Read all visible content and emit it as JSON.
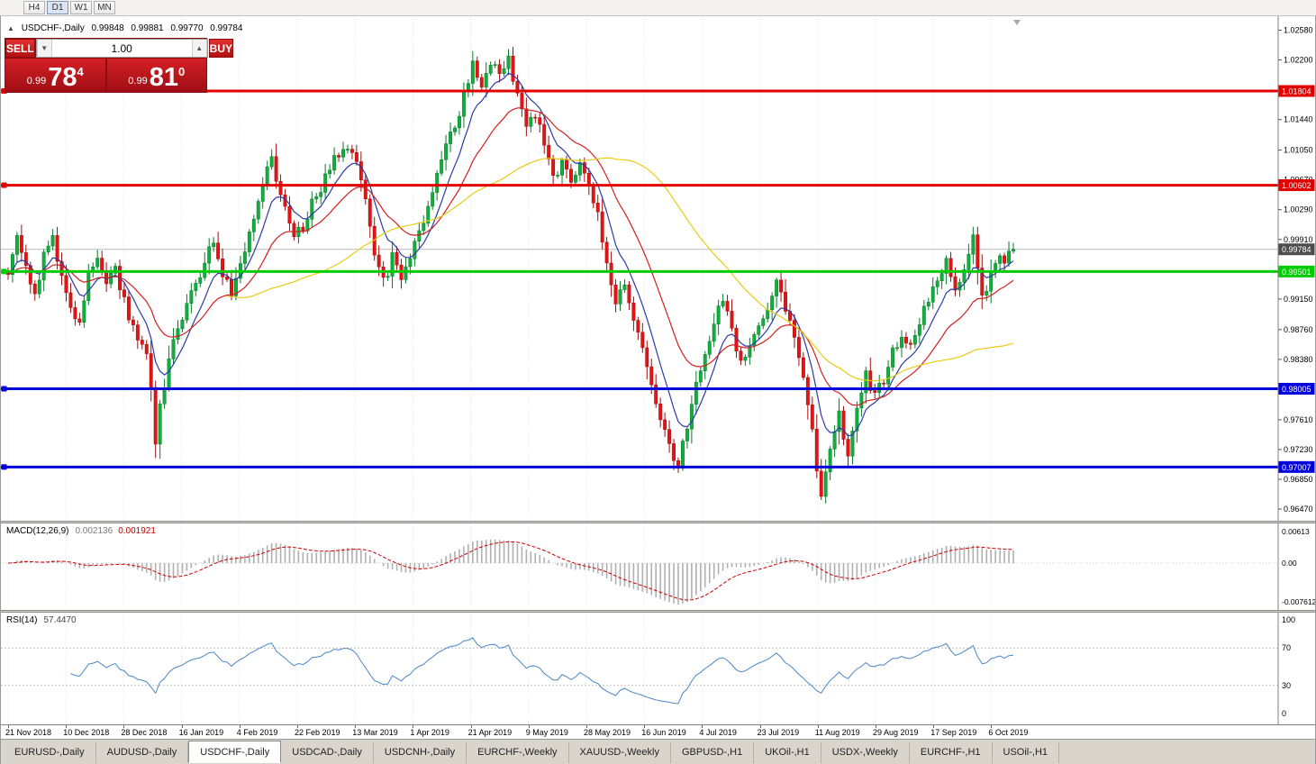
{
  "toolbar": {
    "timeframes": [
      {
        "label": "H4",
        "active": false
      },
      {
        "label": "D1",
        "active": true
      },
      {
        "label": "W1",
        "active": false
      },
      {
        "label": "MN",
        "active": false
      }
    ]
  },
  "chart_header": {
    "collapse_marker": "▲",
    "title": "USDCHF-,Daily",
    "ohlc": {
      "open": "0.99848",
      "high": "0.99881",
      "low": "0.99770",
      "close": "0.99784"
    }
  },
  "trade_panel": {
    "sell_label": "SELL",
    "buy_label": "BUY",
    "volume": "1.00",
    "volume_down_glyph": "▼",
    "volume_up_glyph": "▲",
    "sell_price": {
      "prefix": "0.99",
      "big": "78",
      "sup": "4"
    },
    "buy_price": {
      "prefix": "0.99",
      "big": "81",
      "sup": "0"
    }
  },
  "price_axis": {
    "ticks": [
      "1.02580",
      "1.02200",
      "1.01440",
      "1.01050",
      "1.00670",
      "1.00290",
      "0.99910",
      "0.99150",
      "0.98760",
      "0.98380",
      "0.97610",
      "0.97230",
      "0.96850",
      "0.96470"
    ],
    "current": {
      "label": "0.99784",
      "price": 0.99784,
      "color": "#4d4d4d"
    }
  },
  "chart_data": {
    "type": "candlestick",
    "symbol": "USDCHF-",
    "timeframe": "Daily",
    "bar_count": 226,
    "last_close": 0.99784,
    "price_range": [
      0.9647,
      1.0258
    ],
    "dates": [
      "21 Nov 2018",
      "10 Dec 2018",
      "28 Dec 2018",
      "16 Jan 2019",
      "4 Feb 2019",
      "22 Feb 2019",
      "13 Mar 2019",
      "1 Apr 2019",
      "21 Apr 2019",
      "9 May 2019",
      "28 May 2019",
      "16 Jun 2019",
      "4 Jul 2019",
      "23 Jul 2019",
      "11 Aug 2019",
      "29 Aug 2019",
      "17 Sep 2019",
      "6 Oct 2019"
    ],
    "close_anchors": [
      [
        0,
        0.9945
      ],
      [
        2,
        0.999
      ],
      [
        4,
        0.9952
      ],
      [
        6,
        0.9918
      ],
      [
        8,
        0.9975
      ],
      [
        10,
        0.9988
      ],
      [
        12,
        0.994
      ],
      [
        14,
        0.9902
      ],
      [
        16,
        0.9886
      ],
      [
        18,
        0.9952
      ],
      [
        20,
        0.9968
      ],
      [
        22,
        0.993
      ],
      [
        24,
        0.9958
      ],
      [
        26,
        0.9912
      ],
      [
        28,
        0.988
      ],
      [
        30,
        0.9852
      ],
      [
        31,
        0.984
      ],
      [
        32,
        0.98
      ],
      [
        33,
        0.9738
      ],
      [
        34,
        0.9775
      ],
      [
        36,
        0.9845
      ],
      [
        38,
        0.9885
      ],
      [
        40,
        0.9905
      ],
      [
        42,
        0.9935
      ],
      [
        44,
        0.9965
      ],
      [
        46,
        0.9985
      ],
      [
        48,
        0.995
      ],
      [
        50,
        0.9928
      ],
      [
        52,
        0.9965
      ],
      [
        54,
        0.9995
      ],
      [
        56,
        1.0032
      ],
      [
        58,
        1.008
      ],
      [
        59,
        1.0095
      ],
      [
        60,
        1.0062
      ],
      [
        62,
        1.0028
      ],
      [
        64,
        0.9992
      ],
      [
        66,
        1.0008
      ],
      [
        68,
        1.0035
      ],
      [
        70,
        1.0058
      ],
      [
        72,
        1.008
      ],
      [
        74,
        1.0102
      ],
      [
        76,
        1.0112
      ],
      [
        78,
        1.0085
      ],
      [
        80,
        1.0035
      ],
      [
        82,
        0.9975
      ],
      [
        84,
        0.9935
      ],
      [
        86,
        0.9968
      ],
      [
        88,
        0.9942
      ],
      [
        90,
        0.9975
      ],
      [
        92,
        1.0005
      ],
      [
        94,
        1.0035
      ],
      [
        96,
        1.0068
      ],
      [
        98,
        1.0105
      ],
      [
        100,
        1.0135
      ],
      [
        102,
        1.0175
      ],
      [
        104,
        1.021
      ],
      [
        106,
        1.0185
      ],
      [
        108,
        1.0222
      ],
      [
        110,
        1.0195
      ],
      [
        112,
        1.0226
      ],
      [
        114,
        1.0175
      ],
      [
        116,
        1.013
      ],
      [
        118,
        1.015
      ],
      [
        120,
        1.0108
      ],
      [
        122,
        1.007
      ],
      [
        124,
        1.0092
      ],
      [
        126,
        1.0062
      ],
      [
        128,
        1.0092
      ],
      [
        130,
        1.0066
      ],
      [
        132,
        1.0018
      ],
      [
        134,
        0.9968
      ],
      [
        136,
        0.9912
      ],
      [
        138,
        0.9932
      ],
      [
        140,
        0.9895
      ],
      [
        142,
        0.9858
      ],
      [
        144,
        0.9812
      ],
      [
        146,
        0.9768
      ],
      [
        148,
        0.9722
      ],
      [
        150,
        0.9698
      ],
      [
        152,
        0.9758
      ],
      [
        154,
        0.9808
      ],
      [
        156,
        0.9852
      ],
      [
        158,
        0.9885
      ],
      [
        160,
        0.9912
      ],
      [
        162,
        0.9872
      ],
      [
        164,
        0.9832
      ],
      [
        166,
        0.9855
      ],
      [
        168,
        0.9878
      ],
      [
        170,
        0.9908
      ],
      [
        172,
        0.9932
      ],
      [
        174,
        0.9898
      ],
      [
        176,
        0.9862
      ],
      [
        178,
        0.9822
      ],
      [
        180,
        0.9752
      ],
      [
        181,
        0.9702
      ],
      [
        182,
        0.9668
      ],
      [
        184,
        0.9722
      ],
      [
        186,
        0.9768
      ],
      [
        188,
        0.9722
      ],
      [
        190,
        0.9782
      ],
      [
        192,
        0.9822
      ],
      [
        194,
        0.9788
      ],
      [
        196,
        0.9812
      ],
      [
        198,
        0.9845
      ],
      [
        200,
        0.9872
      ],
      [
        202,
        0.9852
      ],
      [
        204,
        0.9888
      ],
      [
        206,
        0.9912
      ],
      [
        208,
        0.9932
      ],
      [
        210,
        0.9958
      ],
      [
        212,
        0.9922
      ],
      [
        214,
        0.9952
      ],
      [
        216,
        0.9998
      ],
      [
        218,
        0.9918
      ],
      [
        220,
        0.9945
      ],
      [
        222,
        0.9962
      ],
      [
        224,
        0.9974
      ],
      [
        225,
        0.99784
      ]
    ],
    "sr_lines": [
      {
        "price": 1.01804,
        "label": "1.01804",
        "color": "#e00000",
        "width": 3
      },
      {
        "price": 1.00602,
        "label": "1.00602",
        "color": "#e00000",
        "width": 3
      },
      {
        "price": 0.99501,
        "label": "0.99501",
        "color": "#00cc00",
        "width": 3
      },
      {
        "price": 0.98005,
        "label": "0.98005",
        "color": "#0000dd",
        "width": 3
      },
      {
        "price": 0.97007,
        "label": "0.97007",
        "color": "#0000dd",
        "width": 3
      }
    ],
    "moving_averages": [
      {
        "period": 8,
        "type": "ema",
        "color": "#2a3aa8"
      },
      {
        "period": 21,
        "type": "ema",
        "color": "#d22020"
      },
      {
        "period": 50,
        "type": "sma",
        "color": "#e8cc10"
      }
    ],
    "candle_colors": {
      "up": "#0faf3c",
      "up_stroke": "#0a7a2a",
      "down": "#e41414",
      "down_stroke": "#9e0e0e"
    }
  },
  "macd_panel": {
    "label": "MACD(12,26,9)",
    "main_value": "0.002136",
    "signal_value": "0.001921",
    "axis": {
      "top": "0.00613",
      "zero": "0.00",
      "bottom": "-0.007612"
    },
    "params": {
      "fast": 12,
      "slow": 26,
      "signal": 9
    },
    "colors": {
      "histogram": "#b0b0b0",
      "signal": "#cc0000"
    }
  },
  "rsi_panel": {
    "label": "RSI(14)",
    "value": "57.4470",
    "period": 14,
    "levels": [
      70,
      30
    ],
    "axis": [
      "100",
      "70",
      "30",
      "0"
    ],
    "color": "#4a86c8"
  },
  "tab_bar": {
    "active_index": 2,
    "tabs": [
      "EURUSD-,Daily",
      "AUDUSD-,Daily",
      "USDCHF-,Daily",
      "USDCAD-,Daily",
      "USDCNH-,Daily",
      "EURCHF-,Weekly",
      "XAUUSD-,Weekly",
      "GBPUSD-,H1",
      "UKOil-,H1",
      "USDX-,Weekly",
      "EURCHF-,H1",
      "USOil-,H1"
    ]
  }
}
